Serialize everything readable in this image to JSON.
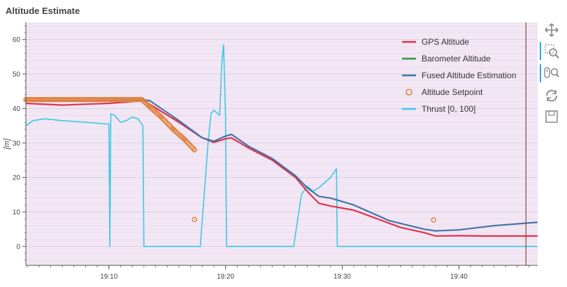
{
  "chart_data": {
    "type": "line",
    "title": "Altitude Estimate",
    "ylabel": "[m]",
    "xlabel": "",
    "ylim": [
      -5.5,
      65
    ],
    "xlim": [
      "19:02:53",
      "19:46:45"
    ],
    "y_ticks": [
      0,
      10,
      20,
      30,
      40,
      50,
      60
    ],
    "x_ticks": [
      "19:10",
      "19:20",
      "19:30",
      "19:40"
    ],
    "grid": true,
    "legend_position": "top-right",
    "background_color": "#f2e6f5",
    "vertical_marker_time": "19:45:45",
    "series": [
      {
        "name": "GPS Altitude",
        "color": "#e0334d",
        "style": "line",
        "points": [
          [
            "19:02:53",
            41.5
          ],
          [
            "19:06:00",
            41.0
          ],
          [
            "19:10:00",
            41.5
          ],
          [
            "19:13:00",
            42.3
          ],
          [
            "19:16:00",
            36.0
          ],
          [
            "19:18:00",
            31.5
          ],
          [
            "19:19:00",
            30.2
          ],
          [
            "19:20:00",
            31.2
          ],
          [
            "19:20:30",
            31.5
          ],
          [
            "19:22:00",
            28.5
          ],
          [
            "19:24:00",
            25.0
          ],
          [
            "19:26:00",
            20.0
          ],
          [
            "19:27:00",
            16.0
          ],
          [
            "19:28:00",
            12.5
          ],
          [
            "19:29:00",
            11.7
          ],
          [
            "19:31:00",
            10.5
          ],
          [
            "19:33:00",
            8.0
          ],
          [
            "19:35:00",
            5.5
          ],
          [
            "19:37:00",
            4.0
          ],
          [
            "19:38:00",
            3.0
          ],
          [
            "19:40:00",
            3.1
          ],
          [
            "19:42:00",
            3.0
          ],
          [
            "19:46:45",
            3.0
          ]
        ]
      },
      {
        "name": "Barometer Altitude",
        "color": "#2c9b3a",
        "style": "line",
        "points": []
      },
      {
        "name": "Fused Altitude Estimation",
        "color": "#4473a8",
        "style": "line",
        "points": [
          [
            "19:02:53",
            42.3
          ],
          [
            "19:08:00",
            42.3
          ],
          [
            "19:13:00",
            42.5
          ],
          [
            "19:13:30",
            42.3
          ],
          [
            "19:16:00",
            36.5
          ],
          [
            "19:18:00",
            31.5
          ],
          [
            "19:19:00",
            30.5
          ],
          [
            "19:20:00",
            32.0
          ],
          [
            "19:20:30",
            32.5
          ],
          [
            "19:22:00",
            29.0
          ],
          [
            "19:24:00",
            25.5
          ],
          [
            "19:26:00",
            20.5
          ],
          [
            "19:27:00",
            17.0
          ],
          [
            "19:28:00",
            14.5
          ],
          [
            "19:29:00",
            14.0
          ],
          [
            "19:31:00",
            12.0
          ],
          [
            "19:34:00",
            7.5
          ],
          [
            "19:37:00",
            5.0
          ],
          [
            "19:38:00",
            4.5
          ],
          [
            "19:40:00",
            4.8
          ],
          [
            "19:43:00",
            6.0
          ],
          [
            "19:46:45",
            7.0
          ]
        ]
      },
      {
        "name": "Altitude Setpoint",
        "color": "#e1823e",
        "style": "markers",
        "points": [
          [
            "19:02:53",
            42.6
          ],
          [
            "19:12:50",
            42.6
          ],
          [
            "19:13:30",
            40.5
          ],
          [
            "19:14:30",
            37.5
          ],
          [
            "19:15:30",
            34.0
          ],
          [
            "19:16:30",
            31.0
          ],
          [
            "19:17:20",
            28.0
          ],
          [
            "19:17:20",
            7.8
          ],
          [
            "19:37:50",
            7.7
          ]
        ]
      },
      {
        "name": "Thrust [0, 100]",
        "color": "#3ec8e2",
        "style": "line",
        "points": [
          [
            "19:02:53",
            35.0
          ],
          [
            "19:03:30",
            36.5
          ],
          [
            "19:04:30",
            37.0
          ],
          [
            "19:06:00",
            36.5
          ],
          [
            "19:08:00",
            36.0
          ],
          [
            "19:09:45",
            35.5
          ],
          [
            "19:10:00",
            35.5
          ],
          [
            "19:10:05",
            0.0
          ],
          [
            "19:10:10",
            38.5
          ],
          [
            "19:10:30",
            38.0
          ],
          [
            "19:11:00",
            36.0
          ],
          [
            "19:11:30",
            36.5
          ],
          [
            "19:12:00",
            37.5
          ],
          [
            "19:12:30",
            37.0
          ],
          [
            "19:12:55",
            35.0
          ],
          [
            "19:13:00",
            0.0
          ],
          [
            "19:16:50",
            0.0
          ],
          [
            "19:17:50",
            0.0
          ],
          [
            "19:18:30",
            30.0
          ],
          [
            "19:18:45",
            38.5
          ],
          [
            "19:19:00",
            39.5
          ],
          [
            "19:19:30",
            38.0
          ],
          [
            "19:19:40",
            53.0
          ],
          [
            "19:19:50",
            58.5
          ],
          [
            "19:20:00",
            38.0
          ],
          [
            "19:20:05",
            0.0
          ],
          [
            "19:25:50",
            0.0
          ],
          [
            "19:26:30",
            15.0
          ],
          [
            "19:27:00",
            17.5
          ],
          [
            "19:27:30",
            16.0
          ],
          [
            "19:28:00",
            17.0
          ],
          [
            "19:29:00",
            20.0
          ],
          [
            "19:29:30",
            22.5
          ],
          [
            "19:29:35",
            0.0
          ],
          [
            "19:46:45",
            0.0
          ]
        ]
      }
    ]
  },
  "toolbar": {
    "tools": [
      "pan-icon",
      "box-zoom-icon",
      "wheel-zoom-icon",
      "reset-icon",
      "save-icon"
    ]
  }
}
